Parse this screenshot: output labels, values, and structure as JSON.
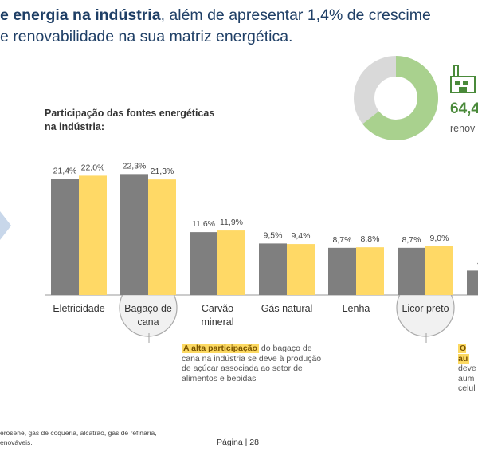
{
  "headline": {
    "line1_bold": "e energia na indústria",
    "line1_rest": ", além de apresentar 1,4% de crescime",
    "line2": "e renovabilidade na sua matriz energética."
  },
  "kpi": {
    "value": "64,4",
    "label": "renov",
    "donut_share": 0.644,
    "colors": {
      "renewable": "#a9d18e",
      "other": "#d9d9d9"
    }
  },
  "chart_data": {
    "type": "bar",
    "title": "Participação das fontes energéticas na indústria:",
    "categories": [
      "Eletricidade",
      "Bagaço de cana",
      "Carvão mineral",
      "Gás natural",
      "Lenha",
      "Licor preto",
      ""
    ],
    "category_lines": [
      [
        "Eletricidade"
      ],
      [
        "Bagaço de",
        "cana"
      ],
      [
        "Carvão",
        "mineral"
      ],
      [
        "Gás natural"
      ],
      [
        "Lenha"
      ],
      [
        "Licor preto"
      ],
      [
        ""
      ]
    ],
    "series": [
      {
        "values": [
          21.4,
          22.3,
          11.6,
          9.5,
          8.7,
          8.7,
          4.5
        ],
        "labels": [
          "21,4%",
          "22,3%",
          "11,6%",
          "9,5%",
          "8,7%",
          "8,7%",
          "4,"
        ],
        "color": "#7f7f7f"
      },
      {
        "values": [
          22.0,
          21.3,
          11.9,
          9.4,
          8.8,
          9.0,
          null
        ],
        "labels": [
          "22,0%",
          "21,3%",
          "11,9%",
          "9,4%",
          "8,8%",
          "9,0%",
          null
        ],
        "color": "#ffd966"
      }
    ],
    "ylim": [
      0,
      25
    ],
    "grid": false,
    "highlighted_categories": [
      "Bagaço de cana",
      "Licor preto"
    ]
  },
  "callouts": [
    {
      "highlight": "A alta participação",
      "lines": [
        " do bagaço de",
        "cana na indústria se deve à produção",
        "de açúcar associada ao setor de",
        "alimentos e bebidas"
      ]
    },
    {
      "highlight": "O au",
      "lines": [
        "deve",
        "aum",
        "celul"
      ]
    }
  ],
  "footnote": {
    "line1": "erosene, gás de coqueria, alcatrão, gás de refinaria,",
    "line2": "enováveis."
  },
  "page": {
    "number_label": "Página | 28"
  }
}
